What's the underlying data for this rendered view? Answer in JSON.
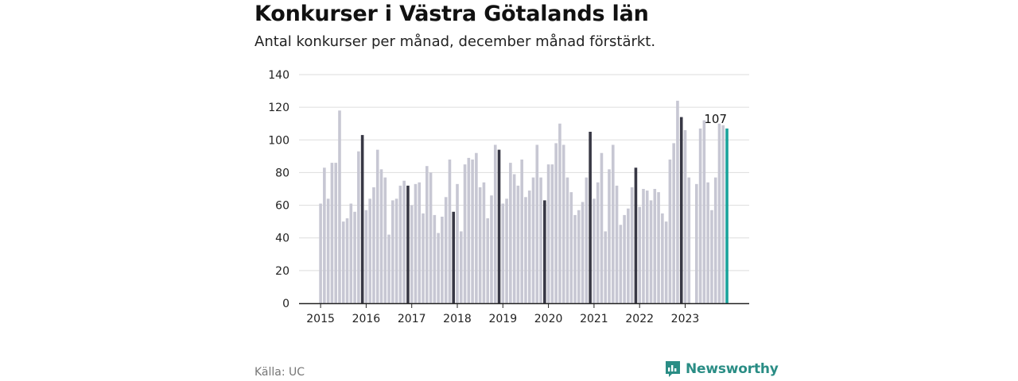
{
  "title": "Konkurser i Västra Götalands län",
  "subtitle": "Antal konkurser per månad, december månad förstärkt.",
  "source": "Källa: UC",
  "brand": {
    "name": "Newsworthy",
    "icon": "newsworthy-logo-icon"
  },
  "colors": {
    "bar": "#c7c7d3",
    "december": "#383845",
    "latest": "#1aa39b",
    "grid": "#dddddd",
    "axis": "#222222"
  },
  "chart_data": {
    "type": "bar",
    "title": "Konkurser i Västra Götalands län",
    "subtitle": "Antal konkurser per månad, december månad förstärkt.",
    "xlabel": "",
    "ylabel": "",
    "ylim": [
      0,
      140
    ],
    "yticks": [
      "0",
      "20",
      "40",
      "60",
      "80",
      "100",
      "120",
      "140"
    ],
    "grid": true,
    "start": "2015-01",
    "x_tick_labels": [
      "2015",
      "2016",
      "2017",
      "2018",
      "2019",
      "2020",
      "2021",
      "2022",
      "2023"
    ],
    "highlight": "december",
    "last_value_label": "107",
    "values": [
      61,
      83,
      64,
      86,
      86,
      118,
      50,
      52,
      61,
      56,
      93,
      103,
      57,
      64,
      71,
      94,
      82,
      77,
      42,
      63,
      64,
      72,
      75,
      72,
      60,
      73,
      74,
      55,
      84,
      80,
      54,
      43,
      53,
      65,
      88,
      56,
      73,
      44,
      85,
      89,
      88,
      92,
      71,
      74,
      52,
      66,
      97,
      94,
      61,
      64,
      86,
      79,
      72,
      88,
      65,
      69,
      77,
      97,
      77,
      63,
      85,
      85,
      98,
      110,
      97,
      77,
      68,
      54,
      57,
      62,
      77,
      105,
      64,
      74,
      92,
      44,
      82,
      97,
      72,
      48,
      54,
      58,
      71,
      83,
      59,
      70,
      69,
      63,
      70,
      68,
      55,
      50,
      88,
      98,
      124,
      114,
      106,
      77,
      0,
      73,
      107,
      112,
      74,
      57,
      77,
      110,
      109,
      107
    ]
  }
}
